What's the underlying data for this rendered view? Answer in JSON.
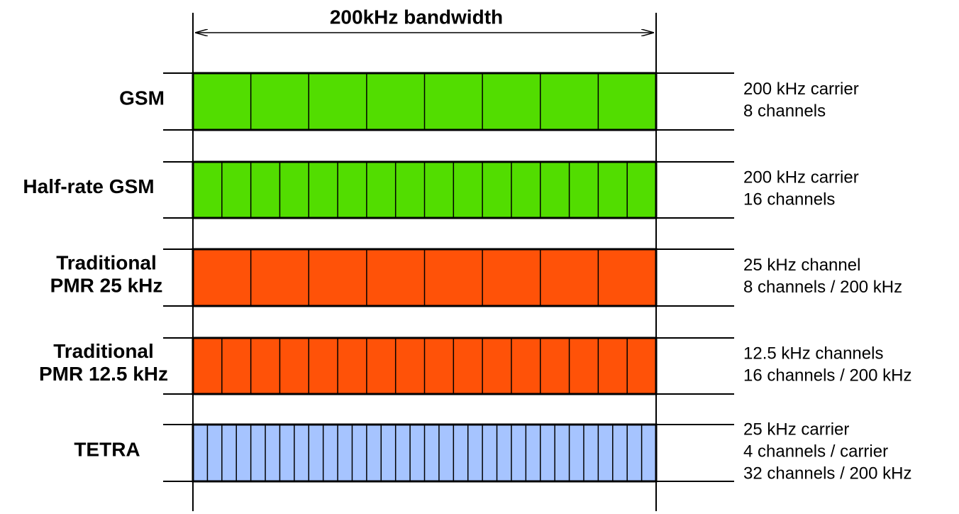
{
  "title": "200kHz bandwidth",
  "rows": [
    {
      "label": [
        "GSM"
      ],
      "notes": [
        "200 kHz carrier",
        "8 channels"
      ]
    },
    {
      "label": [
        "Half-rate GSM"
      ],
      "notes": [
        "200 kHz carrier",
        "16 channels"
      ]
    },
    {
      "label": [
        "Traditional",
        "PMR 25 kHz"
      ],
      "notes": [
        "25 kHz channel",
        "8 channels / 200 kHz"
      ]
    },
    {
      "label": [
        "Traditional",
        "PMR 12.5 kHz"
      ],
      "notes": [
        "12.5 kHz channels",
        "16 channels / 200 kHz"
      ]
    },
    {
      "label": [
        "TETRA"
      ],
      "notes": [
        "25 kHz carrier",
        "4 channels / carrier",
        "32 channels / 200 kHz"
      ]
    }
  ]
}
